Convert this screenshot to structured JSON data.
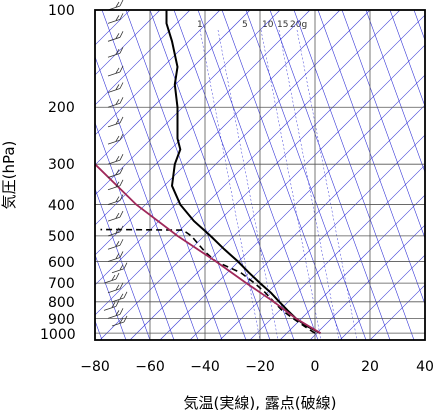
{
  "chart_data": {
    "type": "line",
    "subtype": "skew-T log-P thermodynamic diagram",
    "xlabel": "気温(実線), 露点(破線)",
    "ylabel": "気圧(hPa)",
    "xlim": [
      -80,
      40
    ],
    "ylim_hPa": [
      1050,
      100
    ],
    "y_scale": "log",
    "x_ticks": [
      -80,
      -60,
      -40,
      -20,
      0,
      20,
      40
    ],
    "x_tick_labels": [
      "−80",
      "−60",
      "−40",
      "−20",
      "0",
      "20",
      "40"
    ],
    "y_ticks": [
      100,
      200,
      300,
      400,
      500,
      600,
      700,
      800,
      900,
      1000
    ],
    "y_tick_labels": [
      "100",
      "200",
      "300",
      "400",
      "500",
      "600",
      "700",
      "800",
      "900",
      "1000"
    ],
    "mixing_ratio_labels": [
      {
        "label": "1",
        "value": 1
      },
      {
        "label": "5",
        "value": 5
      },
      {
        "label": "10",
        "value": 10
      },
      {
        "label": "15",
        "value": 15
      },
      {
        "label": "20g",
        "value": 20
      }
    ],
    "grid": true,
    "colors": {
      "temperature": "#000000",
      "dewpoint": "#000000",
      "parcel": "#a0285a",
      "background_lines": "#3a3ad8",
      "grid": "#555555",
      "wind": "#333333"
    },
    "series": [
      {
        "style": "solid",
        "points": [
          {
            "p": 1000,
            "t": 2
          },
          {
            "p": 950,
            "t": -3
          },
          {
            "p": 900,
            "t": -7
          },
          {
            "p": 850,
            "t": -10
          },
          {
            "p": 800,
            "t": -13
          },
          {
            "p": 750,
            "t": -16
          },
          {
            "p": 700,
            "t": -20
          },
          {
            "p": 650,
            "t": -24
          },
          {
            "p": 600,
            "t": -28
          },
          {
            "p": 550,
            "t": -33
          },
          {
            "p": 500,
            "t": -38
          },
          {
            "p": 450,
            "t": -44
          },
          {
            "p": 400,
            "t": -49
          },
          {
            "p": 350,
            "t": -52
          },
          {
            "p": 300,
            "t": -51
          },
          {
            "p": 270,
            "t": -49
          },
          {
            "p": 250,
            "t": -50
          },
          {
            "p": 200,
            "t": -50
          },
          {
            "p": 170,
            "t": -51
          },
          {
            "p": 150,
            "t": -50
          },
          {
            "p": 125,
            "t": -52
          },
          {
            "p": 110,
            "t": -54
          },
          {
            "p": 100,
            "t": -54
          }
        ]
      },
      {
        "style": "dashed",
        "points": [
          {
            "p": 1000,
            "t": 0
          },
          {
            "p": 950,
            "t": -4
          },
          {
            "p": 900,
            "t": -8
          },
          {
            "p": 850,
            "t": -12
          },
          {
            "p": 800,
            "t": -15
          },
          {
            "p": 750,
            "t": -18
          },
          {
            "p": 700,
            "t": -22
          },
          {
            "p": 650,
            "t": -27
          },
          {
            "p": 600,
            "t": -36
          },
          {
            "p": 560,
            "t": -40
          },
          {
            "p": 500,
            "t": -45
          },
          {
            "p": 480,
            "t": -48
          },
          {
            "p": 478,
            "t": -70
          },
          {
            "p": 478,
            "t": -78
          }
        ]
      },
      {
        "style": "parcel",
        "points": [
          {
            "p": 1000,
            "t": 2
          },
          {
            "p": 900,
            "t": -7
          },
          {
            "p": 800,
            "t": -15
          },
          {
            "p": 700,
            "t": -25
          },
          {
            "p": 600,
            "t": -36
          },
          {
            "p": 500,
            "t": -50
          },
          {
            "p": 400,
            "t": -65
          },
          {
            "p": 300,
            "t": -80
          }
        ]
      }
    ]
  }
}
